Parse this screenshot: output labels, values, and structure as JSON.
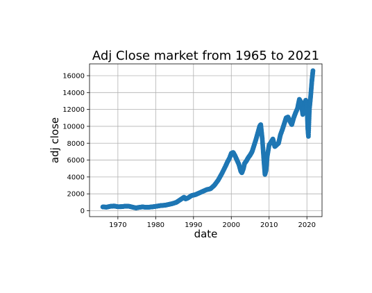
{
  "chart_data": {
    "type": "scatter",
    "title": "Adj Close market from 1965 to 2021",
    "xlabel": "date",
    "ylabel": "adj close",
    "xlim": [
      1962.5,
      2024.0
    ],
    "ylim": [
      -700,
      17400
    ],
    "xticks": [
      1970,
      1980,
      1990,
      2000,
      2010,
      2020
    ],
    "yticks": [
      0,
      2000,
      4000,
      6000,
      8000,
      10000,
      12000,
      14000,
      16000
    ],
    "grid": true,
    "marker_color": "#1f77b4",
    "series": [
      {
        "x": [
          1966.0,
          1967.0,
          1968.0,
          1969.0,
          1970.0,
          1971.0,
          1972.0,
          1973.0,
          1974.0,
          1974.8,
          1975.5,
          1976.5,
          1977.5,
          1978.5,
          1979.5,
          1980.5,
          1981.5,
          1982.5,
          1983.5,
          1984.5,
          1985.5,
          1986.5,
          1987.5,
          1987.9,
          1988.5,
          1989.5,
          1990.5,
          1991.5,
          1992.5,
          1993.5,
          1994.5,
          1995.5,
          1996.5,
          1997.5,
          1998.5,
          1999.0,
          1999.5,
          2000.0,
          2000.5,
          2001.0,
          2001.5,
          2002.0,
          2002.5,
          2002.8,
          2003.2,
          2003.5,
          2004.0,
          2004.5,
          2005.0,
          2005.5,
          2006.0,
          2006.5,
          2007.0,
          2007.5,
          2007.8,
          2008.2,
          2008.6,
          2008.9,
          2009.2,
          2009.5,
          2010.0,
          2010.5,
          2011.0,
          2011.5,
          2012.0,
          2012.5,
          2013.0,
          2013.5,
          2014.0,
          2014.5,
          2015.0,
          2015.5,
          2016.0,
          2016.5,
          2017.0,
          2017.5,
          2018.0,
          2018.5,
          2018.9,
          2019.3,
          2019.7,
          2020.0,
          2020.2,
          2020.4,
          2020.7,
          2021.0,
          2021.3,
          2021.6
        ],
        "y": [
          450,
          420,
          520,
          560,
          470,
          480,
          540,
          520,
          410,
          330,
          390,
          450,
          400,
          430,
          480,
          550,
          620,
          650,
          750,
          850,
          1000,
          1300,
          1600,
          1400,
          1500,
          1800,
          1900,
          2100,
          2300,
          2500,
          2600,
          3000,
          3600,
          4400,
          5300,
          5800,
          6200,
          6800,
          6900,
          6500,
          6000,
          5500,
          4700,
          4500,
          5000,
          5600,
          5900,
          6300,
          6600,
          7000,
          7700,
          8400,
          9200,
          10000,
          10200,
          8500,
          6000,
          4300,
          4800,
          6400,
          7800,
          8100,
          8500,
          7600,
          7800,
          8000,
          9000,
          9600,
          10300,
          11000,
          11100,
          10600,
          10200,
          11000,
          11600,
          12100,
          13200,
          12800,
          11400,
          12600,
          13100,
          12500,
          10000,
          8800,
          12200,
          13600,
          15300,
          16600
        ]
      }
    ]
  }
}
